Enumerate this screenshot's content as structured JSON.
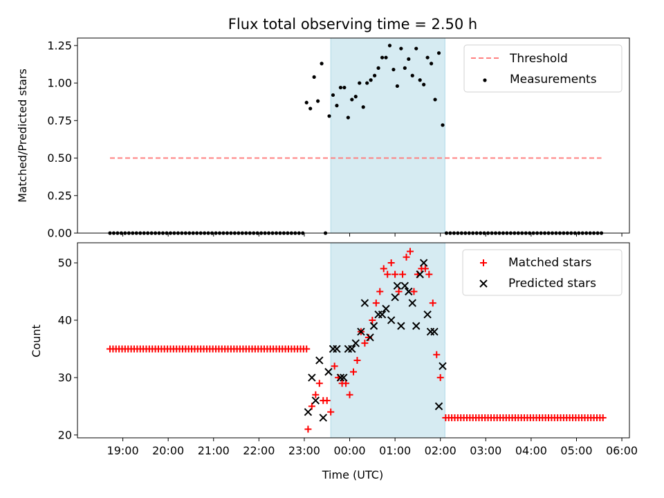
{
  "chart_data": [
    {
      "type": "scatter",
      "title": "Flux total observing time = 2.50 h",
      "ylabel": "Matched/Predicted stars",
      "xlabel": "",
      "ylim": [
        0,
        1.3
      ],
      "yticks": [
        "0.00",
        "0.25",
        "0.50",
        "0.75",
        "1.00",
        "1.25"
      ],
      "shaded_interval": [
        "23:35",
        "02:06"
      ],
      "legend_position": "top-right",
      "threshold": {
        "name": "Threshold",
        "value": 0.5,
        "x_start": "18:43",
        "x_end": "05:33",
        "style": "dashed",
        "color": "#ff7f7f"
      },
      "measurements": {
        "name": "Measurements",
        "color": "#000000",
        "points": [
          [
            "18:43",
            0
          ],
          [
            "18:48",
            0
          ],
          [
            "18:53",
            0
          ],
          [
            "18:58",
            0
          ],
          [
            "19:03",
            0
          ],
          [
            "19:08",
            0
          ],
          [
            "19:13",
            0
          ],
          [
            "19:18",
            0
          ],
          [
            "19:23",
            0
          ],
          [
            "19:28",
            0
          ],
          [
            "19:33",
            0
          ],
          [
            "19:38",
            0
          ],
          [
            "19:43",
            0
          ],
          [
            "19:48",
            0
          ],
          [
            "19:53",
            0
          ],
          [
            "19:58",
            0
          ],
          [
            "20:03",
            0
          ],
          [
            "20:08",
            0
          ],
          [
            "20:13",
            0
          ],
          [
            "20:18",
            0
          ],
          [
            "20:23",
            0
          ],
          [
            "20:28",
            0
          ],
          [
            "20:33",
            0
          ],
          [
            "20:38",
            0
          ],
          [
            "20:43",
            0
          ],
          [
            "20:48",
            0
          ],
          [
            "20:53",
            0
          ],
          [
            "20:58",
            0
          ],
          [
            "21:03",
            0
          ],
          [
            "21:08",
            0
          ],
          [
            "21:13",
            0
          ],
          [
            "21:18",
            0
          ],
          [
            "21:23",
            0
          ],
          [
            "21:28",
            0
          ],
          [
            "21:33",
            0
          ],
          [
            "21:38",
            0
          ],
          [
            "21:43",
            0
          ],
          [
            "21:48",
            0
          ],
          [
            "21:53",
            0
          ],
          [
            "21:58",
            0
          ],
          [
            "22:03",
            0
          ],
          [
            "22:08",
            0
          ],
          [
            "22:13",
            0
          ],
          [
            "22:18",
            0
          ],
          [
            "22:23",
            0
          ],
          [
            "22:28",
            0
          ],
          [
            "22:33",
            0
          ],
          [
            "22:38",
            0
          ],
          [
            "22:43",
            0
          ],
          [
            "22:48",
            0
          ],
          [
            "22:53",
            0
          ],
          [
            "22:58",
            0
          ],
          [
            "23:03",
            0.87
          ],
          [
            "23:08",
            0.83
          ],
          [
            "23:13",
            1.04
          ],
          [
            "23:18",
            0.88
          ],
          [
            "23:23",
            1.13
          ],
          [
            "23:28",
            0
          ],
          [
            "23:33",
            0.78
          ],
          [
            "23:38",
            0.92
          ],
          [
            "23:43",
            0.85
          ],
          [
            "23:48",
            0.97
          ],
          [
            "23:53",
            0.97
          ],
          [
            "23:58",
            0.77
          ],
          [
            "00:03",
            0.89
          ],
          [
            "00:08",
            0.91
          ],
          [
            "00:13",
            1.0
          ],
          [
            "00:18",
            0.84
          ],
          [
            "00:23",
            1.0
          ],
          [
            "00:28",
            1.02
          ],
          [
            "00:33",
            1.05
          ],
          [
            "00:38",
            1.1
          ],
          [
            "00:43",
            1.17
          ],
          [
            "00:48",
            1.17
          ],
          [
            "00:53",
            1.25
          ],
          [
            "00:58",
            1.09
          ],
          [
            "01:03",
            0.98
          ],
          [
            "01:08",
            1.23
          ],
          [
            "01:13",
            1.1
          ],
          [
            "01:18",
            1.16
          ],
          [
            "01:23",
            1.05
          ],
          [
            "01:28",
            1.23
          ],
          [
            "01:33",
            1.02
          ],
          [
            "01:38",
            0.99
          ],
          [
            "01:43",
            1.17
          ],
          [
            "01:48",
            1.13
          ],
          [
            "01:53",
            0.89
          ],
          [
            "01:58",
            1.2
          ],
          [
            "02:03",
            0.72
          ],
          [
            "02:08",
            0
          ],
          [
            "02:13",
            0
          ],
          [
            "02:18",
            0
          ],
          [
            "02:23",
            0
          ],
          [
            "02:28",
            0
          ],
          [
            "02:33",
            0
          ],
          [
            "02:38",
            0
          ],
          [
            "02:43",
            0
          ],
          [
            "02:48",
            0
          ],
          [
            "02:53",
            0
          ],
          [
            "02:58",
            0
          ],
          [
            "03:03",
            0
          ],
          [
            "03:08",
            0
          ],
          [
            "03:13",
            0
          ],
          [
            "03:18",
            0
          ],
          [
            "03:23",
            0
          ],
          [
            "03:28",
            0
          ],
          [
            "03:33",
            0
          ],
          [
            "03:38",
            0
          ],
          [
            "03:43",
            0
          ],
          [
            "03:48",
            0
          ],
          [
            "03:53",
            0
          ],
          [
            "03:58",
            0
          ],
          [
            "04:03",
            0
          ],
          [
            "04:08",
            0
          ],
          [
            "04:13",
            0
          ],
          [
            "04:18",
            0
          ],
          [
            "04:23",
            0
          ],
          [
            "04:28",
            0
          ],
          [
            "04:33",
            0
          ],
          [
            "04:38",
            0
          ],
          [
            "04:43",
            0
          ],
          [
            "04:48",
            0
          ],
          [
            "04:53",
            0
          ],
          [
            "04:58",
            0
          ],
          [
            "05:03",
            0
          ],
          [
            "05:08",
            0
          ],
          [
            "05:13",
            0
          ],
          [
            "05:18",
            0
          ],
          [
            "05:23",
            0
          ],
          [
            "05:28",
            0
          ],
          [
            "05:33",
            0
          ]
        ]
      }
    },
    {
      "type": "scatter",
      "title": "",
      "ylabel": "Count",
      "xlabel": "Time (UTC)",
      "ylim": [
        19.5,
        53.5
      ],
      "yticks": [
        "20",
        "30",
        "40",
        "50"
      ],
      "xticks": [
        "19:00",
        "20:00",
        "21:00",
        "22:00",
        "23:00",
        "00:00",
        "01:00",
        "02:00",
        "03:00",
        "04:00",
        "05:00",
        "06:00"
      ],
      "shaded_interval": [
        "23:35",
        "02:06"
      ],
      "legend_position": "top-right",
      "matched": {
        "name": "Matched stars",
        "color": "#ff0000",
        "marker": "+",
        "constant_segments": [
          {
            "from": "18:43",
            "to": "23:03",
            "step_min": 4,
            "value": 35
          },
          {
            "from": "02:07",
            "to": "05:35",
            "step_min": 4,
            "value": 23
          }
        ],
        "points": [
          [
            "23:05",
            21
          ],
          [
            "23:10",
            25
          ],
          [
            "23:15",
            27
          ],
          [
            "23:20",
            29
          ],
          [
            "23:25",
            26
          ],
          [
            "23:30",
            26
          ],
          [
            "23:35",
            24
          ],
          [
            "23:40",
            32
          ],
          [
            "23:45",
            30
          ],
          [
            "23:50",
            29
          ],
          [
            "23:55",
            29
          ],
          [
            "00:00",
            27
          ],
          [
            "00:05",
            31
          ],
          [
            "00:10",
            33
          ],
          [
            "00:15",
            38
          ],
          [
            "00:20",
            36
          ],
          [
            "00:25",
            37
          ],
          [
            "00:30",
            40
          ],
          [
            "00:35",
            43
          ],
          [
            "00:40",
            45
          ],
          [
            "00:45",
            49
          ],
          [
            "00:50",
            48
          ],
          [
            "00:55",
            50
          ],
          [
            "01:00",
            48
          ],
          [
            "01:05",
            45
          ],
          [
            "01:10",
            48
          ],
          [
            "01:15",
            51
          ],
          [
            "01:20",
            52
          ],
          [
            "01:25",
            45
          ],
          [
            "01:30",
            48
          ],
          [
            "01:35",
            49
          ],
          [
            "01:40",
            49
          ],
          [
            "01:45",
            48
          ],
          [
            "01:50",
            43
          ],
          [
            "01:55",
            34
          ],
          [
            "02:00",
            30
          ]
        ]
      },
      "predicted": {
        "name": "Predicted stars",
        "color": "#000000",
        "marker": "x",
        "points": [
          [
            "23:05",
            24
          ],
          [
            "23:10",
            30
          ],
          [
            "23:15",
            26
          ],
          [
            "23:20",
            33
          ],
          [
            "23:25",
            23
          ],
          [
            "23:32",
            31
          ],
          [
            "23:38",
            35
          ],
          [
            "23:43",
            35
          ],
          [
            "23:48",
            30
          ],
          [
            "23:52",
            30
          ],
          [
            "23:58",
            35
          ],
          [
            "00:03",
            35
          ],
          [
            "00:08",
            36
          ],
          [
            "00:15",
            38
          ],
          [
            "00:20",
            43
          ],
          [
            "00:27",
            37
          ],
          [
            "00:32",
            39
          ],
          [
            "00:38",
            41
          ],
          [
            "00:43",
            41
          ],
          [
            "00:48",
            42
          ],
          [
            "00:55",
            40
          ],
          [
            "01:00",
            44
          ],
          [
            "01:03",
            46
          ],
          [
            "01:08",
            39
          ],
          [
            "01:13",
            46
          ],
          [
            "01:18",
            45
          ],
          [
            "01:23",
            43
          ],
          [
            "01:28",
            39
          ],
          [
            "01:33",
            48
          ],
          [
            "01:38",
            50
          ],
          [
            "01:43",
            41
          ],
          [
            "01:47",
            38
          ],
          [
            "01:52",
            38
          ],
          [
            "01:58",
            25
          ],
          [
            "02:03",
            32
          ]
        ]
      }
    }
  ]
}
